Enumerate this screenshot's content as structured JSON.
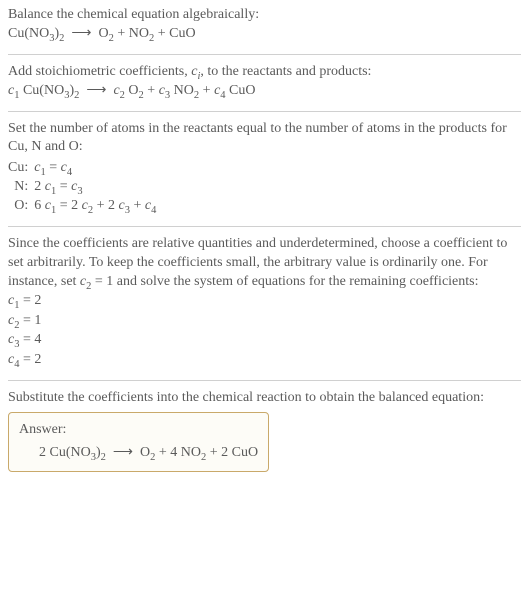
{
  "intro": {
    "line1": "Balance the chemical equation algebraically:",
    "eq_lhs": "Cu(NO<sub>3</sub>)<sub>2</sub>",
    "eq_rhs": "O<sub>2</sub> + NO<sub>2</sub> + CuO"
  },
  "step1": {
    "text": "Add stoichiometric coefficients, <span class='italic'>c<sub>i</sub></span>, to the reactants and products:",
    "eq_lhs": "<span class='italic'>c</span><sub>1</sub> Cu(NO<sub>3</sub>)<sub>2</sub>",
    "eq_rhs": "<span class='italic'>c</span><sub>2</sub> O<sub>2</sub> + <span class='italic'>c</span><sub>3</sub> NO<sub>2</sub> + <span class='italic'>c</span><sub>4</sub> CuO"
  },
  "step2": {
    "text": "Set the number of atoms in the reactants equal to the number of atoms in the products for Cu, N and O:",
    "rows": [
      {
        "el": "Cu:",
        "eq": "<span class='italic'>c</span><sub>1</sub> = <span class='italic'>c</span><sub>4</sub>"
      },
      {
        "el": "N:",
        "eq": "2 <span class='italic'>c</span><sub>1</sub> = <span class='italic'>c</span><sub>3</sub>"
      },
      {
        "el": "O:",
        "eq": "6 <span class='italic'>c</span><sub>1</sub> = 2 <span class='italic'>c</span><sub>2</sub> + 2 <span class='italic'>c</span><sub>3</sub> + <span class='italic'>c</span><sub>4</sub>"
      }
    ]
  },
  "step3": {
    "text": "Since the coefficients are relative quantities and underdetermined, choose a coefficient to set arbitrarily. To keep the coefficients small, the arbitrary value is ordinarily one. For instance, set <span class='italic'>c</span><sub>2</sub> = 1 and solve the system of equations for the remaining coefficients:",
    "coeffs": [
      "<span class='italic'>c</span><sub>1</sub> = 2",
      "<span class='italic'>c</span><sub>2</sub> = 1",
      "<span class='italic'>c</span><sub>3</sub> = 4",
      "<span class='italic'>c</span><sub>4</sub> = 2"
    ]
  },
  "step4": {
    "text": "Substitute the coefficients into the chemical reaction to obtain the balanced equation:"
  },
  "answer": {
    "label": "Answer:",
    "eq_lhs": "2 Cu(NO<sub>3</sub>)<sub>2</sub>",
    "eq_rhs": "O<sub>2</sub> + 4 NO<sub>2</sub> + 2 CuO",
    "border_color": "#c9a96a",
    "bg_color": "#fdfcf7"
  },
  "arrow": "⟶"
}
